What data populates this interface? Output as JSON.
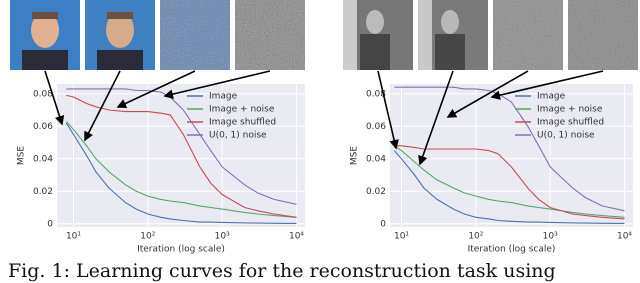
{
  "chart_data": [
    {
      "type": "line",
      "xlabel": "Iteration (log scale)",
      "ylabel": "MSE",
      "xscale": "log",
      "grid": true,
      "legend": "upper right",
      "x": [
        8,
        10,
        15,
        20,
        30,
        50,
        70,
        100,
        150,
        200,
        300,
        500,
        700,
        1000,
        2000,
        3000,
        5000,
        10000
      ],
      "xlim": [
        6,
        13000
      ],
      "xticks": [
        {
          "value": 10,
          "label": "10¹"
        },
        {
          "value": 100,
          "label": "10²"
        },
        {
          "value": 1000,
          "label": "10³"
        },
        {
          "value": 10000,
          "label": "10⁴"
        }
      ],
      "ylim": [
        -0.002,
        0.086
      ],
      "yticks": [
        0.0,
        0.02,
        0.04,
        0.06,
        0.08
      ],
      "series": [
        {
          "name": "Image",
          "color": "#4c72b0",
          "values": [
            0.062,
            0.055,
            0.042,
            0.032,
            0.022,
            0.013,
            0.009,
            0.006,
            0.004,
            0.003,
            0.002,
            0.001,
            0.001,
            0.0008,
            0.0005,
            0.0004,
            0.0003,
            0.0002
          ]
        },
        {
          "name": "Image + noise",
          "color": "#55a868",
          "values": [
            0.063,
            0.058,
            0.048,
            0.04,
            0.032,
            0.024,
            0.02,
            0.017,
            0.015,
            0.014,
            0.013,
            0.011,
            0.01,
            0.009,
            0.007,
            0.006,
            0.005,
            0.004
          ]
        },
        {
          "name": "Image shuffled",
          "color": "#c44e52",
          "values": [
            0.079,
            0.078,
            0.074,
            0.072,
            0.07,
            0.069,
            0.069,
            0.069,
            0.068,
            0.067,
            0.055,
            0.035,
            0.025,
            0.018,
            0.01,
            0.008,
            0.006,
            0.004
          ]
        },
        {
          "name": "U(0, 1) noise",
          "color": "#8172b2",
          "values": [
            0.083,
            0.083,
            0.083,
            0.083,
            0.083,
            0.083,
            0.082,
            0.082,
            0.081,
            0.078,
            0.07,
            0.055,
            0.045,
            0.035,
            0.024,
            0.019,
            0.015,
            0.012
          ]
        }
      ]
    },
    {
      "type": "line",
      "xlabel": "Iteration (log scale)",
      "ylabel": "MSE",
      "xscale": "log",
      "grid": true,
      "legend": "upper right",
      "x": [
        8,
        10,
        15,
        20,
        30,
        50,
        70,
        100,
        150,
        200,
        300,
        500,
        700,
        1000,
        2000,
        3000,
        5000,
        10000
      ],
      "xlim": [
        7,
        13000
      ],
      "xticks": [
        {
          "value": 10,
          "label": "10¹"
        },
        {
          "value": 100,
          "label": "10²"
        },
        {
          "value": 1000,
          "label": "10³"
        },
        {
          "value": 10000,
          "label": "10⁴"
        }
      ],
      "ylim": [
        -0.002,
        0.086
      ],
      "yticks": [
        0.0,
        0.02,
        0.04,
        0.06,
        0.08
      ],
      "series": [
        {
          "name": "Image",
          "color": "#4c72b0",
          "values": [
            0.045,
            0.04,
            0.03,
            0.022,
            0.015,
            0.009,
            0.006,
            0.004,
            0.003,
            0.002,
            0.0015,
            0.001,
            0.001,
            0.0008,
            0.0005,
            0.0004,
            0.0003,
            0.0002
          ]
        },
        {
          "name": "Image + noise",
          "color": "#55a868",
          "values": [
            0.048,
            0.045,
            0.038,
            0.033,
            0.027,
            0.022,
            0.019,
            0.017,
            0.015,
            0.014,
            0.013,
            0.011,
            0.01,
            0.009,
            0.007,
            0.006,
            0.005,
            0.004
          ]
        },
        {
          "name": "Image shuffled",
          "color": "#c44e52",
          "values": [
            0.048,
            0.048,
            0.047,
            0.046,
            0.046,
            0.046,
            0.046,
            0.046,
            0.045,
            0.043,
            0.035,
            0.022,
            0.015,
            0.01,
            0.006,
            0.005,
            0.004,
            0.003
          ]
        },
        {
          "name": "U(0, 1) noise",
          "color": "#8172b2",
          "values": [
            0.084,
            0.084,
            0.084,
            0.084,
            0.084,
            0.084,
            0.083,
            0.083,
            0.082,
            0.08,
            0.075,
            0.06,
            0.048,
            0.035,
            0.022,
            0.016,
            0.011,
            0.008
          ]
        }
      ]
    }
  ],
  "caption": "Fig. 1: Learning curves for the reconstruction task using"
}
